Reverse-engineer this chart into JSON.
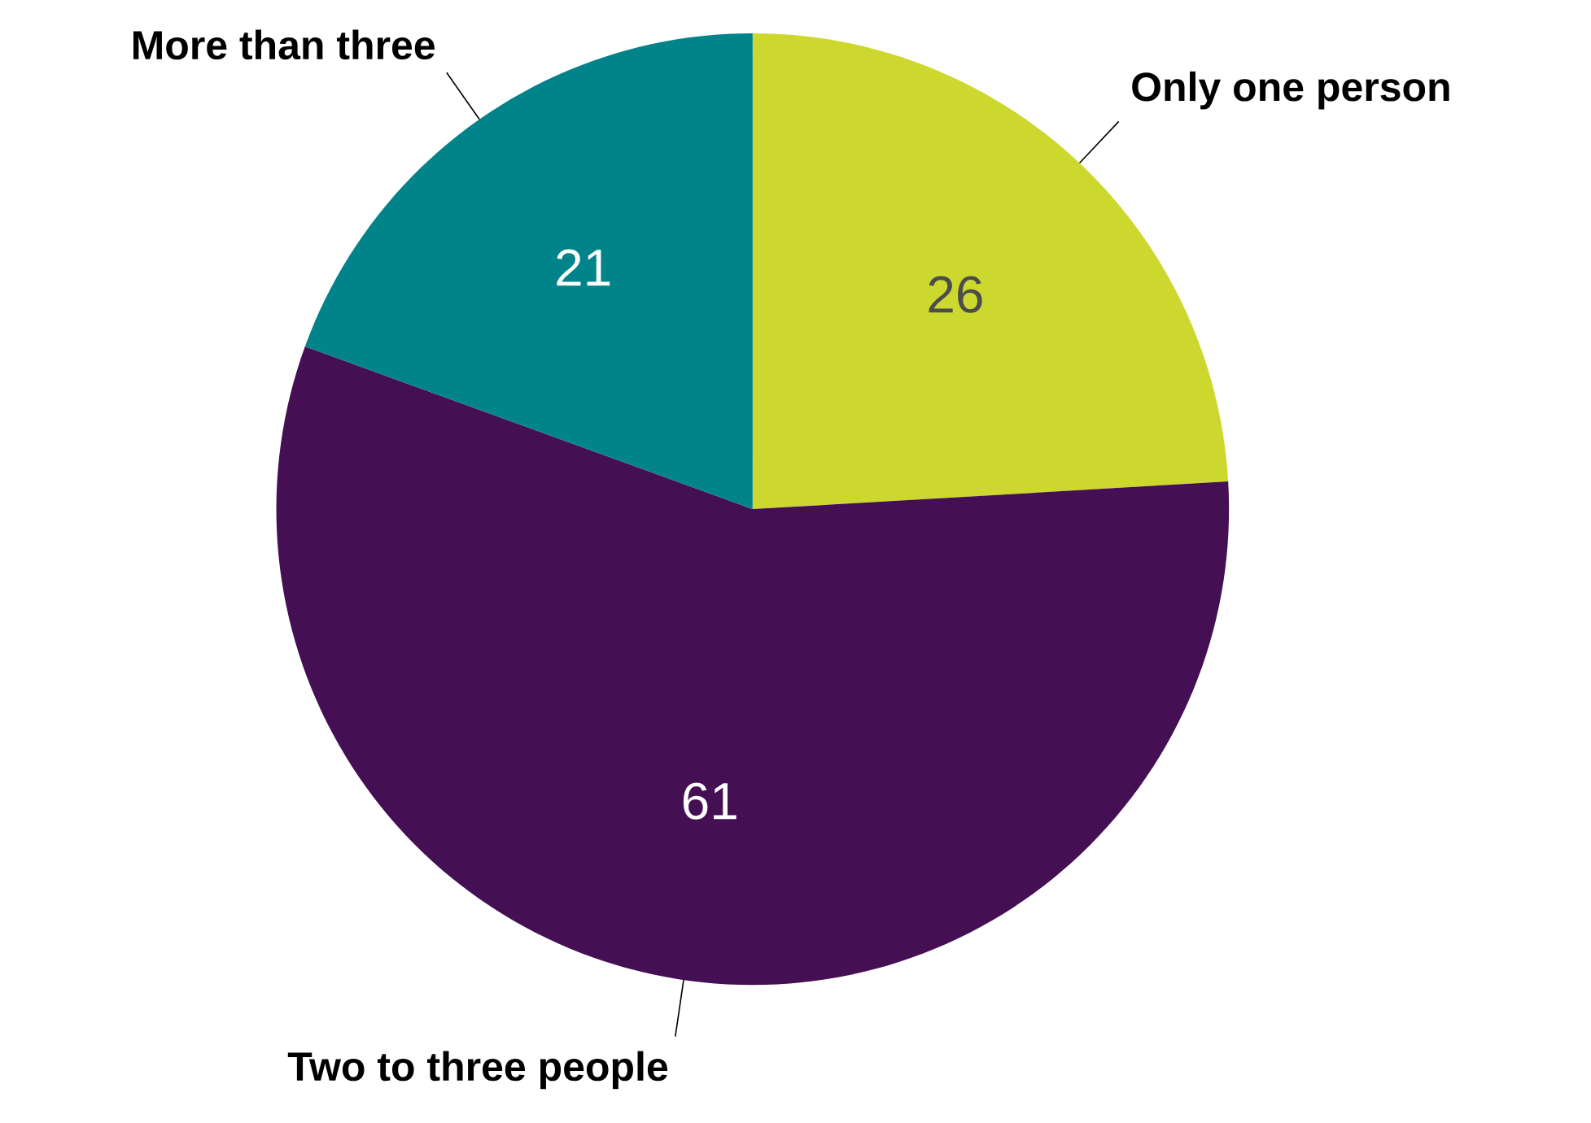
{
  "chart_data": {
    "type": "pie",
    "categories": [
      "Only one person",
      "Two to three people",
      "More than three"
    ],
    "values": [
      26,
      61,
      21
    ],
    "colors": [
      "#cdd82f",
      "#450f54",
      "#008489"
    ],
    "data_labels": true
  }
}
